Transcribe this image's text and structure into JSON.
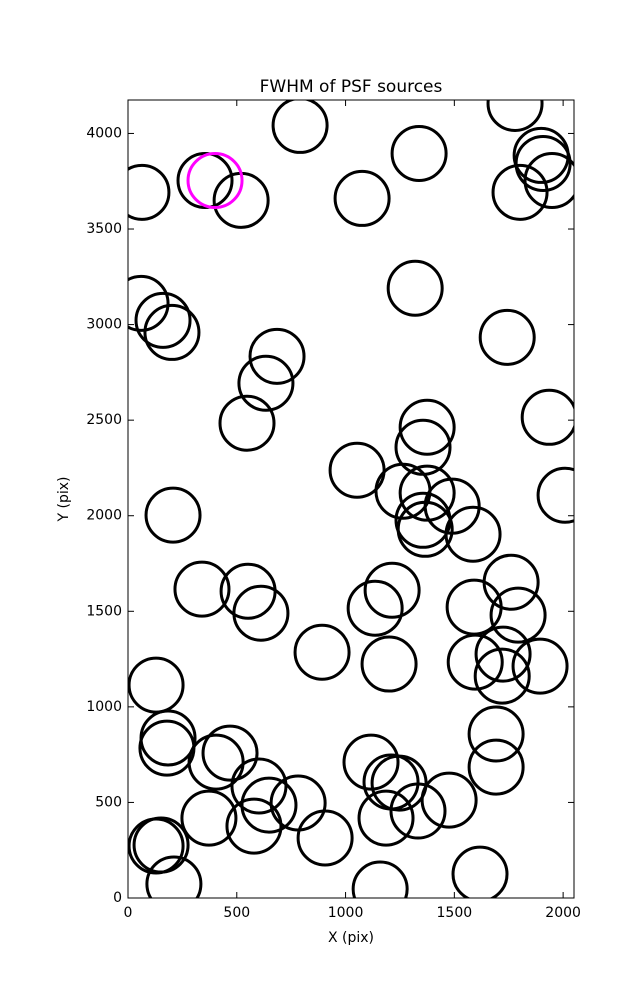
{
  "chart_data": {
    "type": "scatter",
    "title": "FWHM of PSF sources",
    "x_label": "X (pix)",
    "y_label": "Y (pix)",
    "xlim": [
      0,
      2050
    ],
    "ylim": [
      0,
      4175
    ],
    "xticks": [
      0,
      500,
      1000,
      1500,
      2000
    ],
    "yticks": [
      0,
      500,
      1000,
      1500,
      2000,
      2500,
      3000,
      3500,
      4000
    ],
    "color": "#000000",
    "x": [
      64,
      354,
      520,
      791,
      1076,
      1338,
      1779,
      1899,
      1908,
      1949,
      1802,
      60,
      161,
      202,
      1320,
      1743,
      685,
      634,
      547,
      1936,
      1375,
      1356,
      1053,
      1264,
      1375,
      1490,
      2009,
      207,
      1356,
      1366,
      1586,
      340,
      552,
      1214,
      1136,
      611,
      1761,
      1591,
      1793,
      892,
      1200,
      1596,
      1724,
      1720,
      1894,
      129,
      184,
      179,
      469,
      405,
      1692,
      1692,
      1117,
      1209,
      1246,
      602,
      648,
      782,
      1333,
      1476,
      1186,
      372,
      579,
      906,
      129,
      152,
      211,
      1159,
      1618
    ],
    "y": [
      3692,
      3754,
      3650,
      4042,
      3660,
      3895,
      4157,
      3885,
      3843,
      3754,
      3692,
      3111,
      3022,
      2959,
      3190,
      2933,
      2834,
      2693,
      2484,
      2515,
      2463,
      2358,
      2238,
      2128,
      2118,
      2050,
      2107,
      2003,
      1976,
      1929,
      1903,
      1616,
      1605,
      1610,
      1516,
      1490,
      1652,
      1522,
      1480,
      1286,
      1224,
      1234,
      1276,
      1161,
      1213,
      1114,
      837,
      784,
      758,
      711,
      858,
      685,
      711,
      607,
      601,
      586,
      486,
      497,
      455,
      512,
      418,
      418,
      376,
      314,
      272,
      277,
      73,
      47,
      125
    ],
    "highlight": {
      "x": [
        400
      ],
      "y": [
        3754
      ],
      "color": "#ff00ff"
    }
  }
}
